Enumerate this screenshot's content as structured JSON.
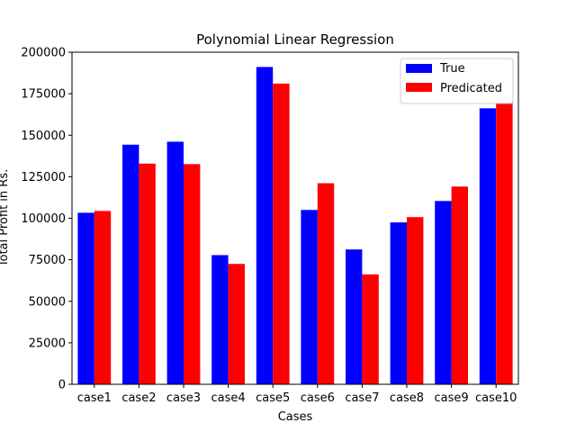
{
  "chart_data": {
    "type": "bar",
    "title": "Polynomial Linear Regression",
    "xlabel": "Cases",
    "ylabel": "Total Profit in Rs.",
    "categories": [
      "case1",
      "case2",
      "case3",
      "case4",
      "case5",
      "case6",
      "case7",
      "case8",
      "case9",
      "case10"
    ],
    "series": [
      {
        "name": "True",
        "color": "#0000ff",
        "values": [
          103300,
          144300,
          146100,
          77800,
          191100,
          105000,
          81200,
          97500,
          110400,
          166200
        ]
      },
      {
        "name": "Predicated",
        "color": "#ff0000",
        "values": [
          104400,
          132900,
          132600,
          72500,
          181100,
          121100,
          66200,
          100700,
          119100,
          169600
        ]
      }
    ],
    "ylim": [
      0,
      200000
    ],
    "yticks": [
      "0",
      "25000",
      "50000",
      "75000",
      "100000",
      "125000",
      "150000",
      "175000",
      "200000"
    ],
    "legend_position": "top-right",
    "grid": false
  }
}
